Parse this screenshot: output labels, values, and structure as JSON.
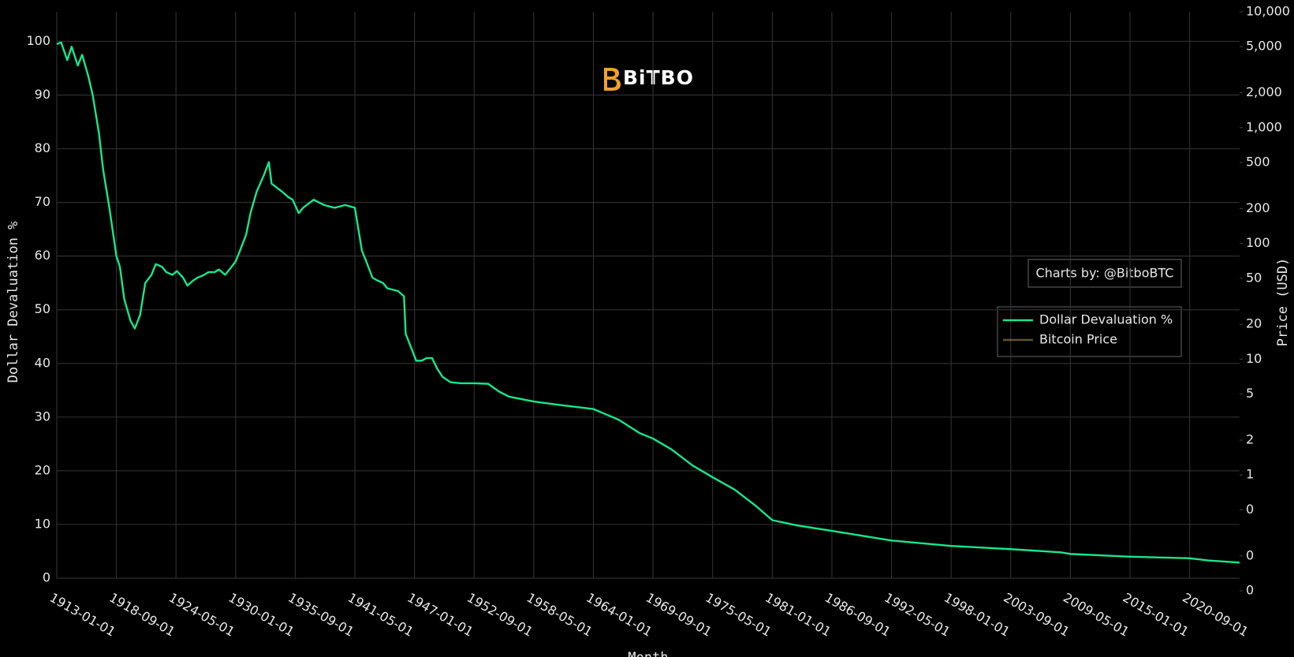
{
  "chart_data": {
    "type": "line",
    "logo": "BiTBO",
    "annotation": "Charts by: @BitboBTC",
    "x_label": "Month",
    "y_label": "Dollar Devaluation %",
    "y2_label": "Price (USD)",
    "x": [
      "1913-01-01",
      "1913-06-01",
      "1914-01-01",
      "1914-06-01",
      "1915-01-01",
      "1915-06-01",
      "1916-01-01",
      "1916-06-01",
      "1917-01-01",
      "1917-06-01",
      "1918-01-01",
      "1918-09-01",
      "1919-01-01",
      "1919-06-01",
      "1920-01-01",
      "1920-06-01",
      "1920-12-01",
      "1921-06-01",
      "1922-01-01",
      "1922-06-01",
      "1923-01-01",
      "1923-06-01",
      "1924-01-01",
      "1924-06-01",
      "1925-01-01",
      "1925-06-01",
      "1926-01-01",
      "1926-06-01",
      "1927-01-01",
      "1927-06-01",
      "1928-01-01",
      "1928-06-01",
      "1929-01-01",
      "1929-06-01",
      "1930-01-01",
      "1930-06-01",
      "1931-01-01",
      "1931-06-01",
      "1932-01-01",
      "1932-09-01",
      "1933-03-01",
      "1933-06-01",
      "1934-06-01",
      "1935-01-01",
      "1935-06-01",
      "1936-01-01",
      "1936-06-01",
      "1937-06-01",
      "1938-06-01",
      "1939-06-01",
      "1940-06-01",
      "1941-05-01",
      "1941-09-01",
      "1942-01-01",
      "1942-06-01",
      "1943-01-01",
      "1943-06-01",
      "1944-01-01",
      "1944-06-01",
      "1945-06-01",
      "1946-01-01",
      "1946-03-01",
      "1946-09-01",
      "1947-03-01",
      "1947-09-01",
      "1948-03-01",
      "1948-09-01",
      "1949-03-01",
      "1949-09-01",
      "1950-06-01",
      "1951-06-01",
      "1952-09-01",
      "1954-01-01",
      "1955-01-01",
      "1956-01-01",
      "1958-05-01",
      "1961-01-01",
      "1964-01-01",
      "1966-06-01",
      "1968-06-01",
      "1969-09-01",
      "1971-06-01",
      "1973-06-01",
      "1975-05-01",
      "1977-06-01",
      "1979-06-01",
      "1981-01-01",
      "1983-06-01",
      "1986-09-01",
      "1992-05-01",
      "1998-01-01",
      "2003-09-01",
      "2008-06-01",
      "2009-05-01",
      "2015-01-01",
      "2020-09-01",
      "2022-06-01",
      "2025-06-01"
    ],
    "series": [
      {
        "name": "Dollar Devaluation %",
        "color": "#19e68c",
        "values": [
          99.5,
          99.8,
          96.5,
          99,
          95.5,
          97.5,
          93.5,
          90,
          83,
          76,
          69,
          60,
          58,
          52,
          48,
          46.5,
          49,
          55,
          56.5,
          58.5,
          58,
          57,
          56.5,
          57.2,
          56,
          54.5,
          55.5,
          56,
          56.5,
          57,
          57,
          57.5,
          56.5,
          57.5,
          59,
          61,
          64,
          68,
          72,
          75,
          77.5,
          73.5,
          72,
          71,
          70.5,
          68,
          69,
          70.5,
          69.5,
          69,
          69.5,
          69,
          65,
          61,
          59,
          56,
          55.5,
          55,
          54,
          53.5,
          52.5,
          45.5,
          43,
          40.5,
          40.5,
          41,
          41,
          39,
          37.5,
          36.5,
          36.3,
          36.3,
          36.2,
          34.8,
          33.8,
          32.9,
          32.2,
          31.5,
          29.5,
          27,
          26,
          24,
          21,
          18.8,
          16.5,
          13.5,
          10.8,
          9.8,
          8.8,
          7,
          6,
          5.4,
          4.8,
          4.5,
          4,
          3.7,
          3.3,
          2.9
        ]
      },
      {
        "name": "Bitcoin Price",
        "color": "#8c7a3c",
        "axis": "y2",
        "hidden": true,
        "x": [],
        "values": []
      }
    ],
    "xlim": [
      "1913-01-01",
      "2025-06-01"
    ],
    "xticks": [
      "1913-01-01",
      "1918-09-01",
      "1924-05-01",
      "1930-01-01",
      "1935-09-01",
      "1941-05-01",
      "1947-01-01",
      "1952-09-01",
      "1958-05-01",
      "1964-01-01",
      "1969-09-01",
      "1975-05-01",
      "1981-01-01",
      "1986-09-01",
      "1992-05-01",
      "1998-01-01",
      "2003-09-01",
      "2009-05-01",
      "2015-01-01",
      "2020-09-01"
    ],
    "ylim": [
      0,
      105.5
    ],
    "yticks": [
      0,
      10,
      20,
      30,
      40,
      50,
      60,
      70,
      80,
      90,
      100
    ],
    "y2lim": [
      0.1,
      10000
    ],
    "y2_log": true,
    "y2ticks": [
      {
        "value": 0.1,
        "label": "0"
      },
      {
        "value": 0.2,
        "label": "0"
      },
      {
        "value": 0.5,
        "label": "0"
      },
      1,
      2,
      5,
      10,
      20,
      50,
      100,
      200,
      500,
      {
        "value": 1000,
        "label": "1,000"
      },
      {
        "value": 2000,
        "label": "2,000"
      },
      {
        "value": 5000,
        "label": "5,000"
      },
      {
        "value": 10000,
        "label": "10,000"
      }
    ],
    "grid": true
  }
}
